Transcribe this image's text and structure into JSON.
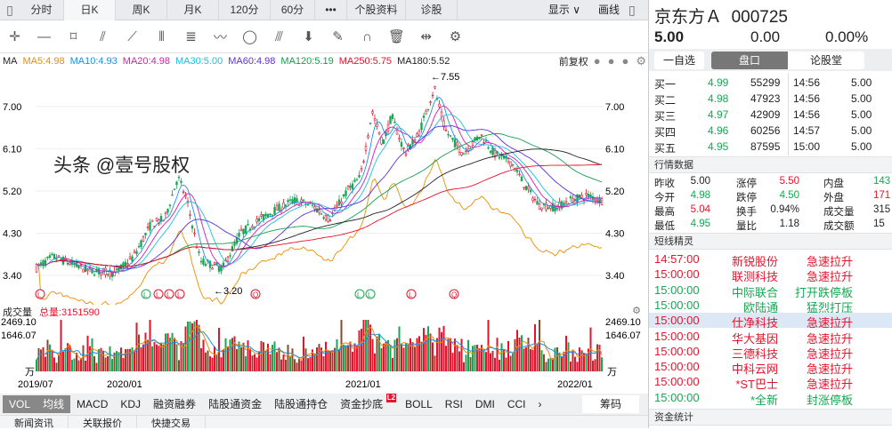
{
  "nav": {
    "tabs": [
      "分时",
      "日K",
      "周K",
      "月K",
      "120分",
      "60分",
      "•••",
      "个股资料",
      "诊股"
    ],
    "active": "日K",
    "display": "显示 ∨",
    "draw": "画线"
  },
  "toolbar": {
    "icons": [
      "move-icon",
      "line-icon",
      "rect-icon",
      "fan-icon",
      "segment-icon",
      "period-lines-icon",
      "text-icon",
      "wave-icon",
      "cycle-icon",
      "gann-icon",
      "arrow-down-icon",
      "eraser-icon",
      "magnet-icon",
      "trash-icon",
      "compress-icon",
      "settings-icon"
    ]
  },
  "ma": {
    "label": "MA",
    "items": [
      {
        "t": "MA5:4.98",
        "c": "#f08c00"
      },
      {
        "t": "MA10:4.93",
        "c": "#1e8fe8"
      },
      {
        "t": "MA20:4.98",
        "c": "#d21cb4"
      },
      {
        "t": "MA30:5.00",
        "c": "#1cc0e0"
      },
      {
        "t": "MA60:4.98",
        "c": "#5a2ee0"
      },
      {
        "t": "MA120:5.19",
        "c": "#12a04a"
      },
      {
        "t": "MA250:5.75",
        "c": "#e5142c"
      },
      {
        "t": "MA180:5.52",
        "c": "#222222"
      }
    ],
    "adjust": "前复权"
  },
  "price_axis": [
    "7.00",
    "6.10",
    "5.20",
    "4.30",
    "3.40"
  ],
  "annotations": {
    "high": "←7.55",
    "low": "←3.20"
  },
  "volume": {
    "label": "成交量",
    "total": "总量:3151590",
    "axis": [
      "2469.10",
      "1646.07"
    ],
    "unit": "万"
  },
  "dates": [
    "2019/07",
    "2020/01",
    "2021/01",
    "2022/01"
  ],
  "indicators": [
    "VOL",
    "均线",
    "MACD",
    "KDJ",
    "融资融券",
    "陆股通资金",
    "陆股通持仓",
    "资金抄底",
    "BOLL",
    "RSI",
    "DMI",
    "CCI",
    "›"
  ],
  "indicator_badge": "L2",
  "chips": "筹码",
  "bottom_tabs": [
    "新闻资讯",
    "关联报价",
    "快捷交易"
  ],
  "stock": {
    "name": "京东方Ａ",
    "code": "000725",
    "price": "5.00",
    "change": "0.00",
    "pct": "0.00%"
  },
  "rtabs": [
    "一自选",
    "盘口",
    "论股堂"
  ],
  "bids": [
    [
      "买一",
      "4.99",
      "55299"
    ],
    [
      "买二",
      "4.98",
      "47923"
    ],
    [
      "买三",
      "4.97",
      "42909"
    ],
    [
      "买四",
      "4.96",
      "60256"
    ],
    [
      "买五",
      "4.95",
      "87595"
    ]
  ],
  "ticks": [
    [
      "14:56",
      "5.00"
    ],
    [
      "14:56",
      "5.00"
    ],
    [
      "14:56",
      "5.00"
    ],
    [
      "14:57",
      "5.00"
    ],
    [
      "15:00",
      "5.00"
    ]
  ],
  "quote_title": "行情数据",
  "quote": [
    [
      "昨收",
      "5.00",
      "涨停",
      "5.50",
      "内盘",
      "143"
    ],
    [
      "今开",
      "4.98",
      "跌停",
      "4.50",
      "外盘",
      "171"
    ],
    [
      "最高",
      "5.04",
      "换手",
      "0.94%",
      "成交量",
      "315"
    ],
    [
      "最低",
      "4.95",
      "量比",
      "1.18",
      "成交额",
      "15"
    ]
  ],
  "alerts_title": "短线精灵",
  "alerts": [
    [
      "14:57:00",
      "新锐股份",
      "急速拉升",
      "r"
    ],
    [
      "15:00:00",
      "联测科技",
      "急速拉升",
      "r"
    ],
    [
      "15:00:00",
      "中际联合",
      "打开跌停板",
      "g"
    ],
    [
      "15:00:00",
      "欧陆通",
      "猛烈打压",
      "g"
    ],
    [
      "15:00:00",
      "仕净科技",
      "急速拉升",
      "r"
    ],
    [
      "15:00:00",
      "华大基因",
      "急速拉升",
      "r"
    ],
    [
      "15:00:00",
      "三德科技",
      "急速拉升",
      "r"
    ],
    [
      "15:00:00",
      "中科云网",
      "急速拉升",
      "r"
    ],
    [
      "15:00:00",
      "*ST巴士",
      "急速拉升",
      "r"
    ],
    [
      "15:00:00",
      "*全新",
      "封涨停板",
      "g"
    ]
  ],
  "funds_title": "资金统计",
  "watermark": "头条 @壹号股权"
}
